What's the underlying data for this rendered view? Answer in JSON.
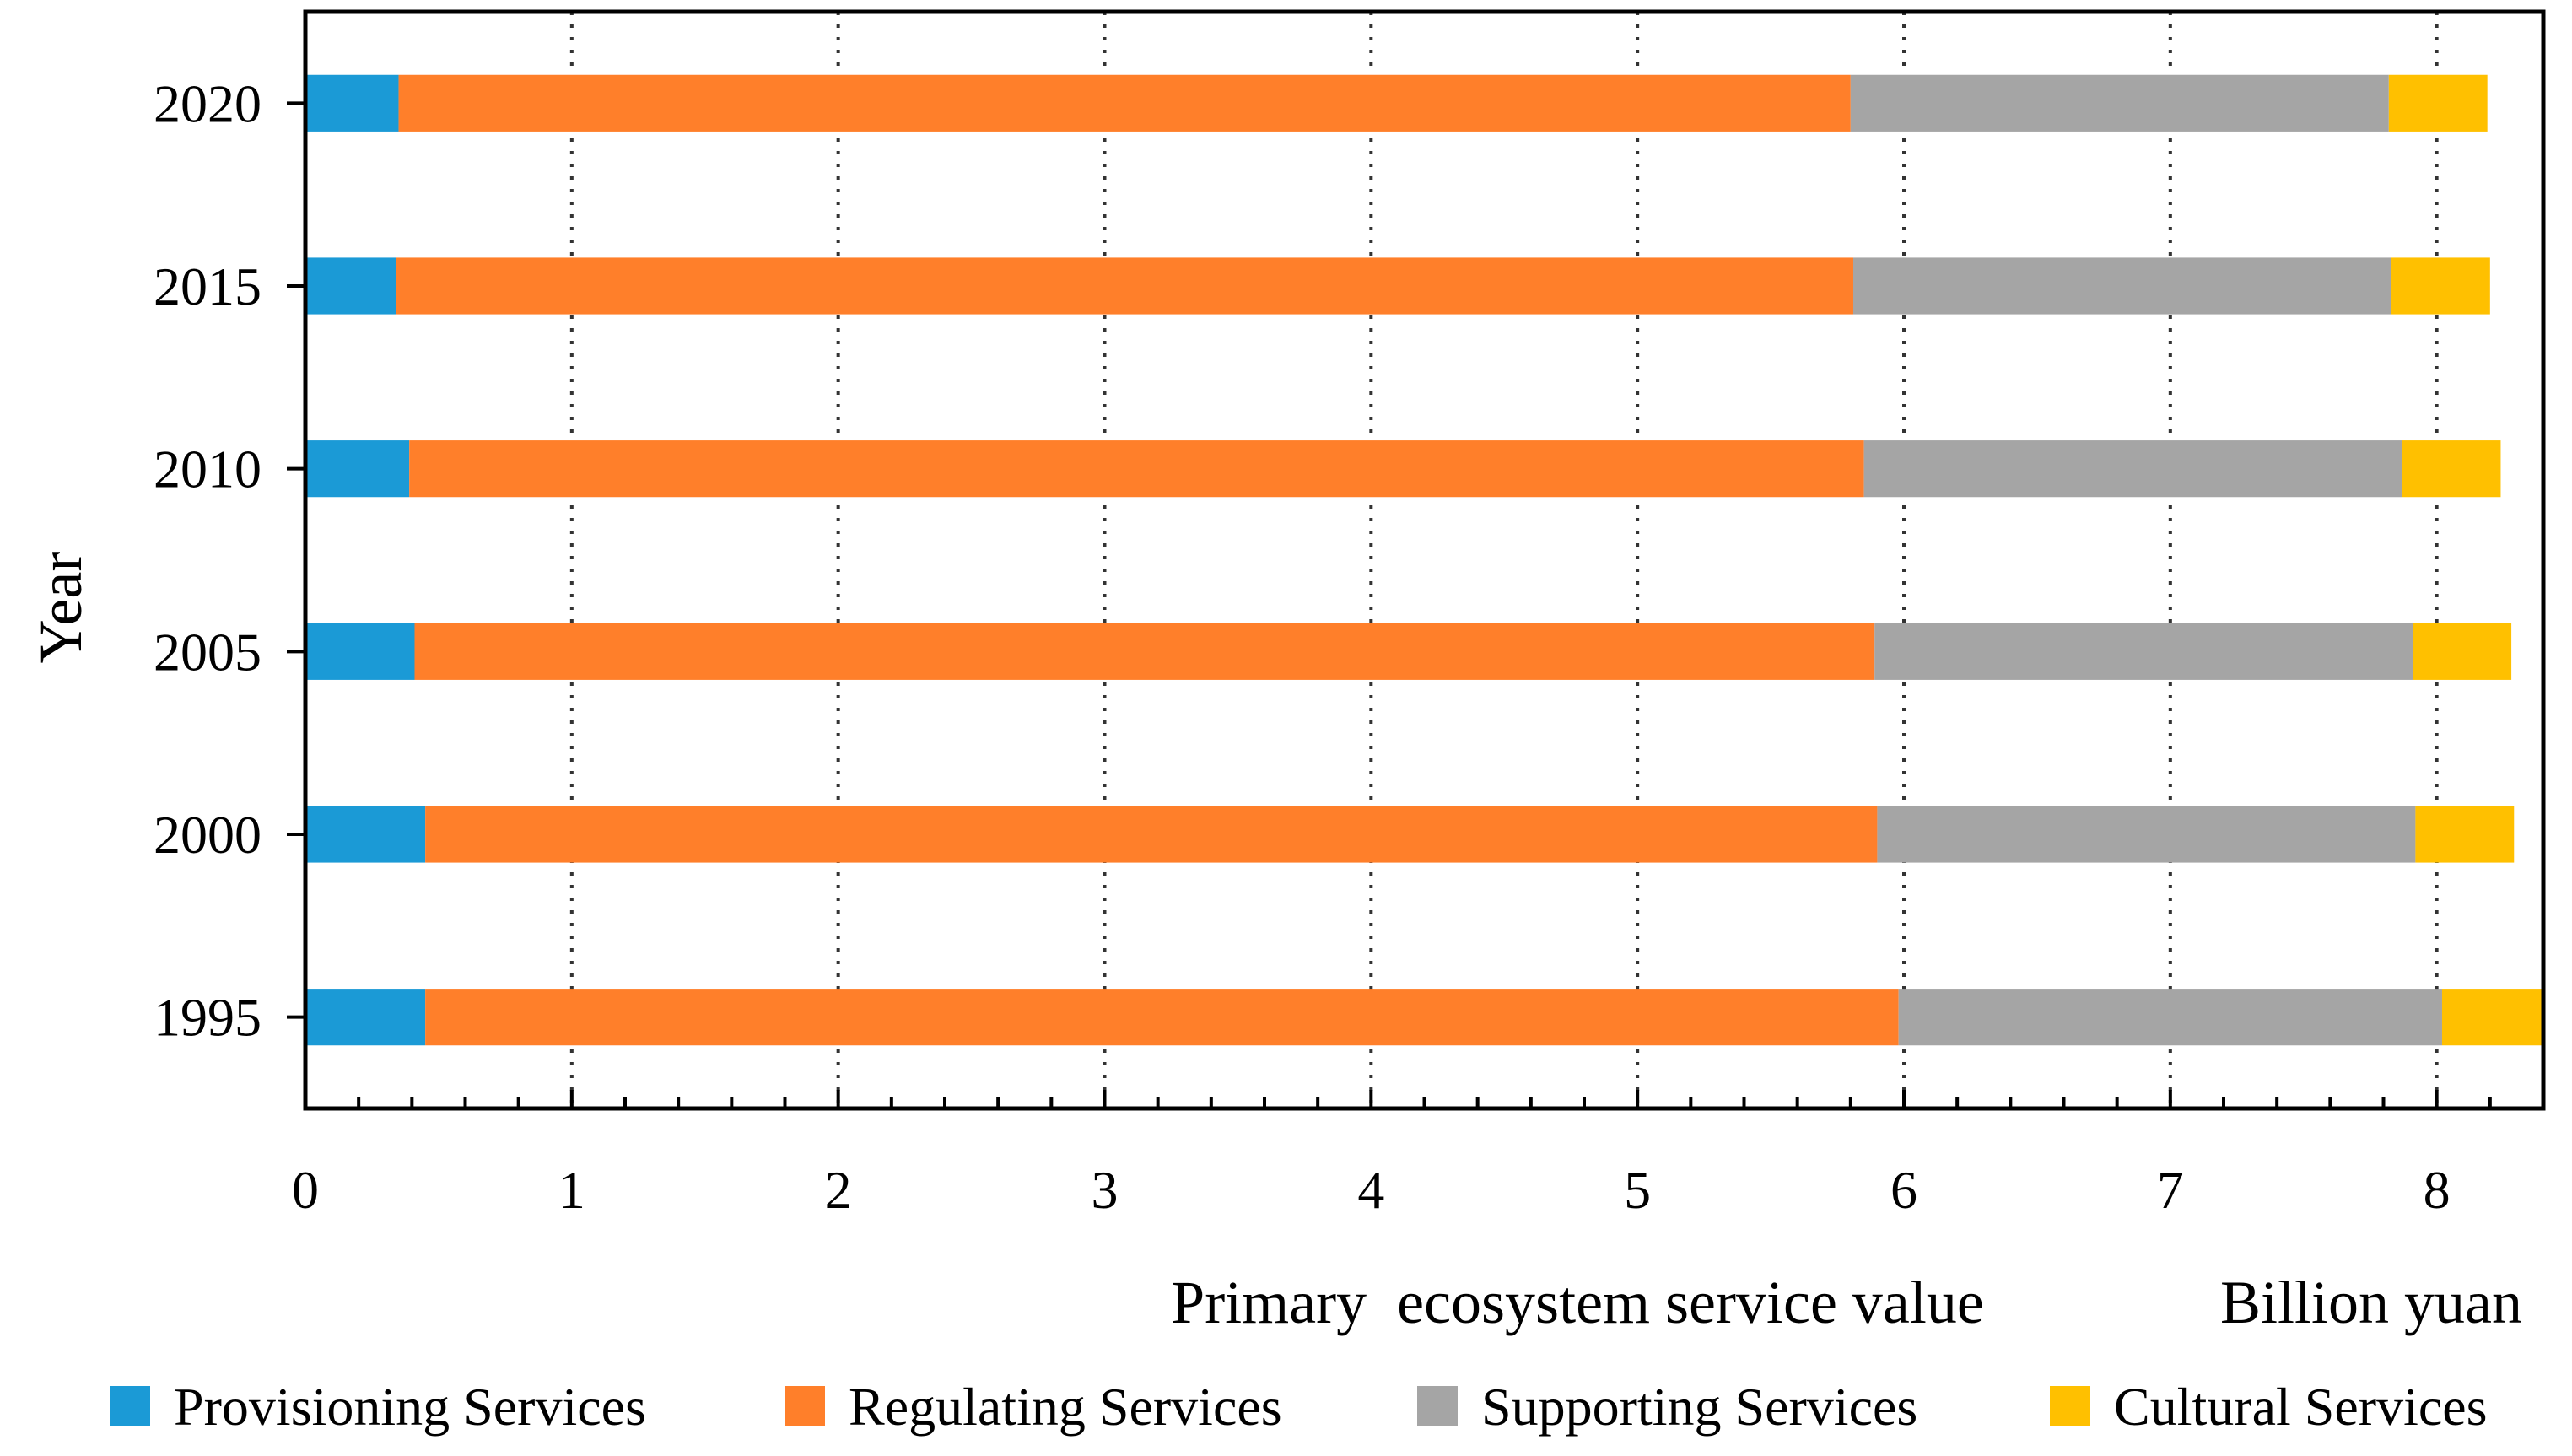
{
  "chart_data": {
    "type": "bar",
    "orientation": "horizontal",
    "stacked": true,
    "title": "",
    "xlabel": "Primary  ecosystem service value",
    "xlabel_unit": "Billion yuan",
    "ylabel": "Year",
    "xlim": [
      0,
      8.4
    ],
    "xticks": [
      "0",
      "1",
      "2",
      "3",
      "4",
      "5",
      "6",
      "7",
      "8"
    ],
    "grid": "vertical dotted",
    "legend_position": "bottom",
    "categories": [
      "2020",
      "2015",
      "2010",
      "2005",
      "2000",
      "1995"
    ],
    "series": [
      {
        "name": "Provisioning Services",
        "color": "#1B9AD6",
        "values": [
          0.35,
          0.34,
          0.39,
          0.41,
          0.45,
          0.45
        ]
      },
      {
        "name": "Regulating Services",
        "color": "#FF7F2A",
        "values": [
          5.45,
          5.47,
          5.46,
          5.48,
          5.45,
          5.53
        ]
      },
      {
        "name": "Supporting Services",
        "color": "#A5A5A5",
        "values": [
          2.02,
          2.02,
          2.02,
          2.02,
          2.02,
          2.04
        ]
      },
      {
        "name": "Cultural Services",
        "color": "#FFC000",
        "values": [
          0.37,
          0.37,
          0.37,
          0.37,
          0.37,
          0.38
        ]
      }
    ]
  }
}
